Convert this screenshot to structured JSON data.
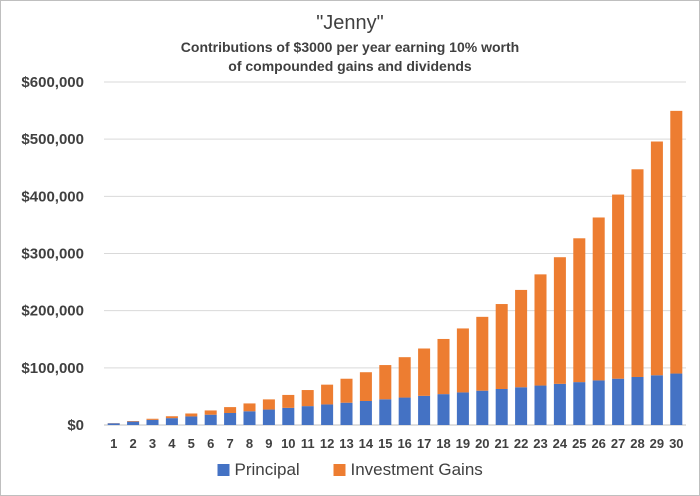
{
  "chart_data": {
    "type": "bar",
    "stacked": true,
    "title": "\"Jenny\"",
    "subtitle_lines": [
      "Contributions of $3000 per year earning 10% worth",
      "of compounded gains and dividends"
    ],
    "xlabel": "",
    "ylabel": "",
    "ylim": [
      0,
      600000
    ],
    "yticks": [
      0,
      100000,
      200000,
      300000,
      400000,
      500000,
      600000
    ],
    "ytick_labels": [
      "$0",
      "$100,000",
      "$200,000",
      "$300,000",
      "$400,000",
      "$500,000",
      "$600,000"
    ],
    "grid": true,
    "legend_position": "bottom",
    "categories": [
      "1",
      "2",
      "3",
      "4",
      "5",
      "6",
      "7",
      "8",
      "9",
      "10",
      "11",
      "12",
      "13",
      "14",
      "15",
      "16",
      "17",
      "18",
      "19",
      "20",
      "21",
      "22",
      "23",
      "24",
      "25",
      "26",
      "27",
      "28",
      "29",
      "30"
    ],
    "series": [
      {
        "name": "Principal",
        "color": "#4472C4",
        "values": [
          3000,
          6000,
          9000,
          12000,
          15000,
          18000,
          21000,
          24000,
          27000,
          30000,
          33000,
          36000,
          39000,
          42000,
          45000,
          48000,
          51000,
          54000,
          57000,
          60000,
          63000,
          66000,
          69000,
          72000,
          75000,
          78000,
          81000,
          84000,
          87000,
          90000
        ]
      },
      {
        "name": "Investment Gains",
        "color": "#ED7D31",
        "values": [
          300,
          930,
          1923,
          3315,
          5147,
          7462,
          10307,
          13736,
          17799,
          22593,
          28153,
          34574,
          41932,
          50325,
          59860,
          70646,
          82809,
          96504,
          111910,
          129200,
          148600,
          170300,
          194500,
          221500,
          251600,
          285000,
          322100,
          363300,
          408900,
          459500
        ]
      }
    ]
  }
}
